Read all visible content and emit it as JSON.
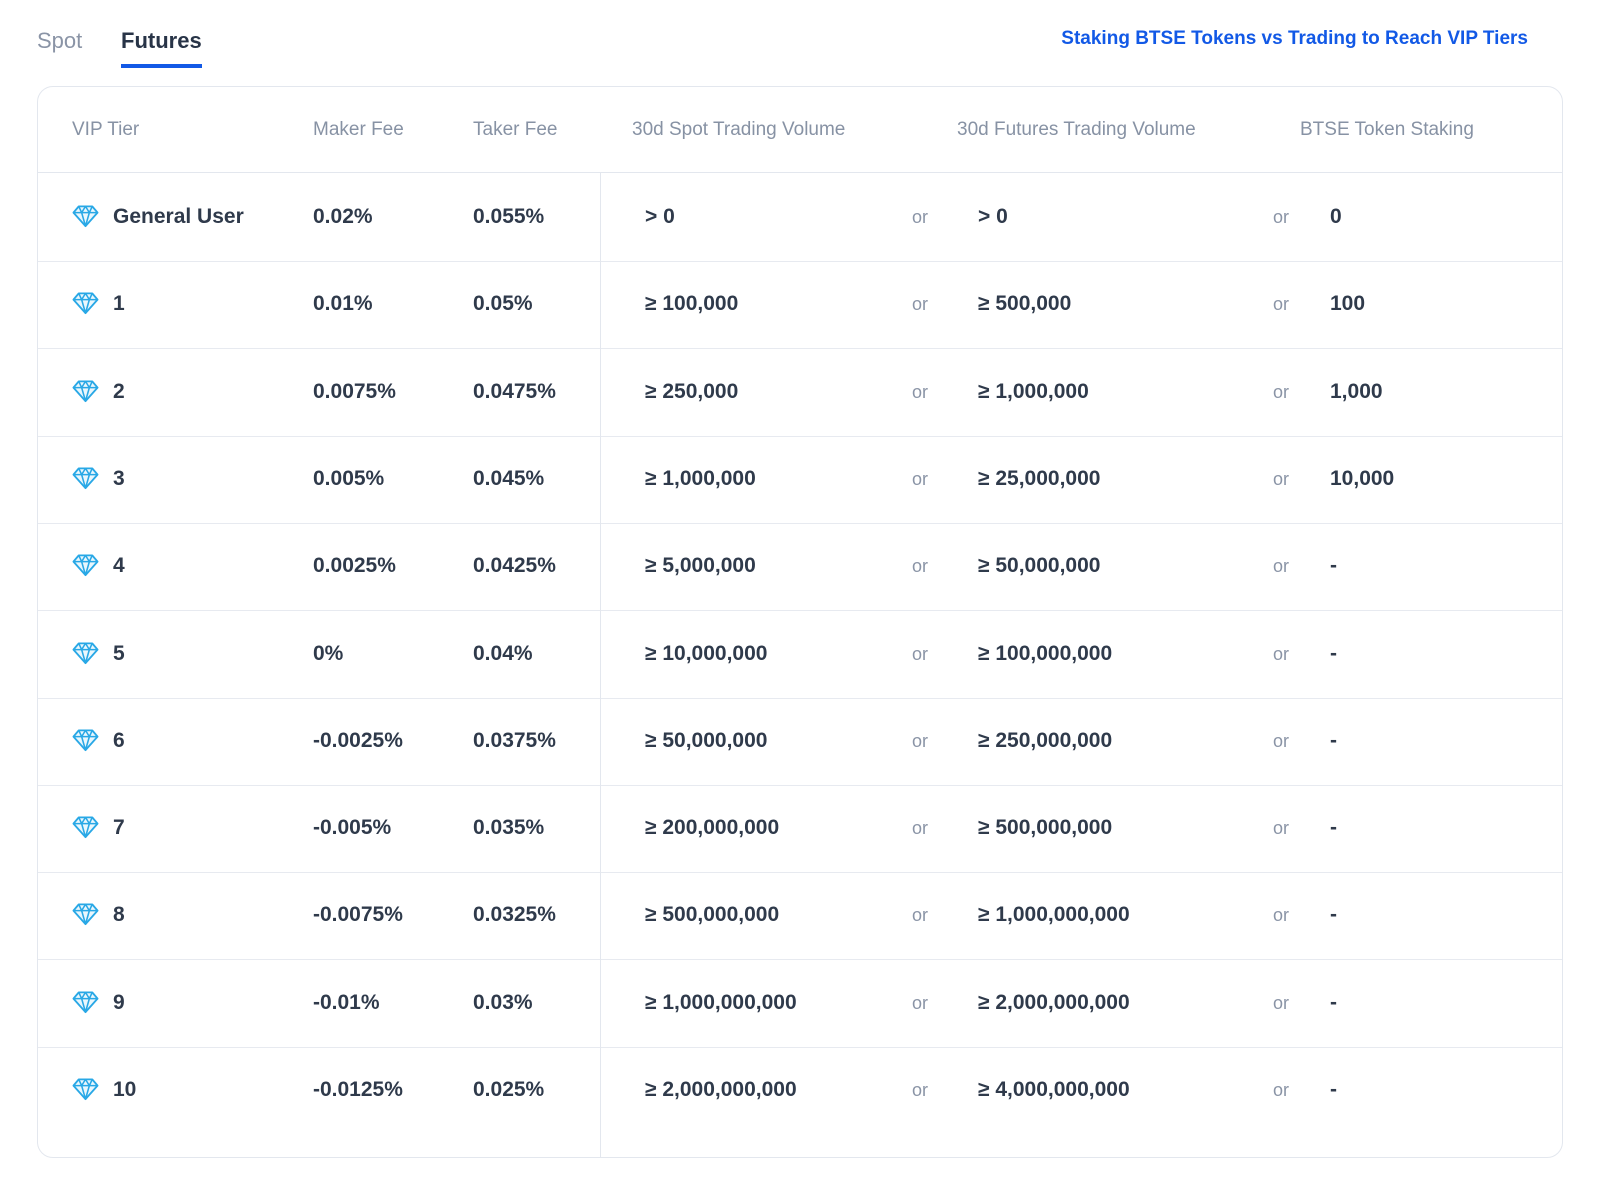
{
  "tabs": [
    {
      "label": "Spot",
      "active": false
    },
    {
      "label": "Futures",
      "active": true
    }
  ],
  "link": {
    "label": "Staking BTSE Tokens vs Trading to Reach VIP Tiers"
  },
  "colors": {
    "accent": "#1259e6",
    "gem": "#29a8e6"
  },
  "table": {
    "headers": {
      "tier": "VIP Tier",
      "maker": "Maker Fee",
      "taker": "Taker Fee",
      "spot": "30d Spot Trading Volume",
      "futures": "30d Futures Trading Volume",
      "staking": "BTSE Token Staking"
    },
    "or_label": "or",
    "tier_icon": "diamond-icon",
    "rows": [
      {
        "tier": "General User",
        "maker": "0.02%",
        "taker": "0.055%",
        "spot": "> 0",
        "futures": "> 0",
        "staking": "0"
      },
      {
        "tier": "1",
        "maker": "0.01%",
        "taker": "0.05%",
        "spot": "≥ 100,000",
        "futures": "≥ 500,000",
        "staking": "100"
      },
      {
        "tier": "2",
        "maker": "0.0075%",
        "taker": "0.0475%",
        "spot": "≥ 250,000",
        "futures": "≥ 1,000,000",
        "staking": "1,000"
      },
      {
        "tier": "3",
        "maker": "0.005%",
        "taker": "0.045%",
        "spot": "≥ 1,000,000",
        "futures": "≥ 25,000,000",
        "staking": "10,000"
      },
      {
        "tier": "4",
        "maker": "0.0025%",
        "taker": "0.0425%",
        "spot": "≥ 5,000,000",
        "futures": "≥ 50,000,000",
        "staking": "-"
      },
      {
        "tier": "5",
        "maker": "0%",
        "taker": "0.04%",
        "spot": "≥ 10,000,000",
        "futures": "≥ 100,000,000",
        "staking": "-"
      },
      {
        "tier": "6",
        "maker": "-0.0025%",
        "taker": "0.0375%",
        "spot": "≥ 50,000,000",
        "futures": "≥ 250,000,000",
        "staking": "-"
      },
      {
        "tier": "7",
        "maker": "-0.005%",
        "taker": "0.035%",
        "spot": "≥ 200,000,000",
        "futures": "≥ 500,000,000",
        "staking": "-"
      },
      {
        "tier": "8",
        "maker": "-0.0075%",
        "taker": "0.0325%",
        "spot": "≥ 500,000,000",
        "futures": "≥ 1,000,000,000",
        "staking": "-"
      },
      {
        "tier": "9",
        "maker": "-0.01%",
        "taker": "0.03%",
        "spot": "≥ 1,000,000,000",
        "futures": "≥ 2,000,000,000",
        "staking": "-"
      },
      {
        "tier": "10",
        "maker": "-0.0125%",
        "taker": "0.025%",
        "spot": "≥ 2,000,000,000",
        "futures": "≥ 4,000,000,000",
        "staking": "-"
      }
    ]
  }
}
